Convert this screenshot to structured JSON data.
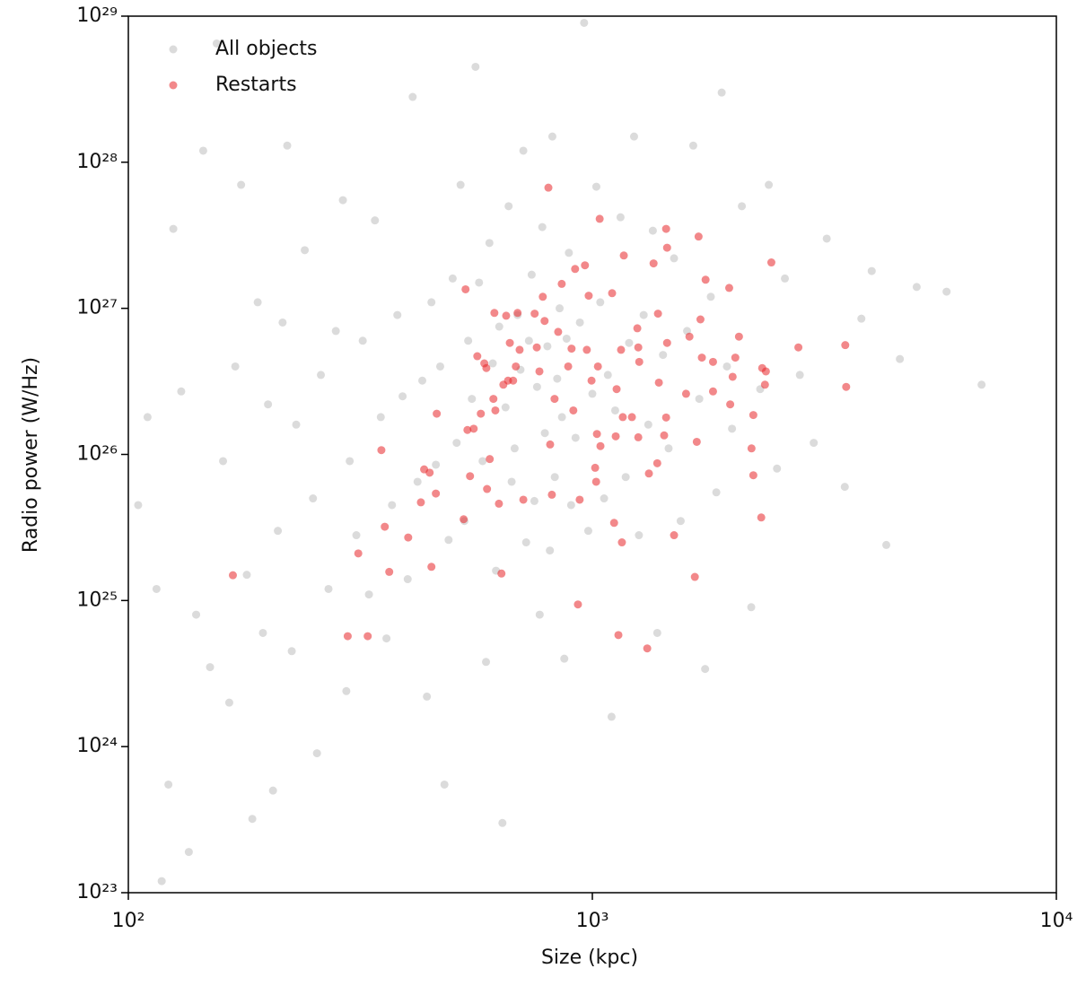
{
  "chart_data": {
    "type": "scatter",
    "xlabel": "Size (kpc)",
    "ylabel": "Radio power (W/Hz)",
    "xscale": "log",
    "yscale": "log",
    "xlim": [
      100,
      10000
    ],
    "ylim": [
      1e+23,
      1e+29
    ],
    "xticks": [
      {
        "value": 100,
        "label": "10²"
      },
      {
        "value": 1000,
        "label": "10³"
      },
      {
        "value": 10000,
        "label": "10⁴"
      }
    ],
    "yticks": [
      {
        "value": 1e+23,
        "label": "10²³"
      },
      {
        "value": 1e+24,
        "label": "10²⁴"
      },
      {
        "value": 1e+25,
        "label": "10²⁵"
      },
      {
        "value": 1e+26,
        "label": "10²⁶"
      },
      {
        "value": 1e+27,
        "label": "10²⁷"
      },
      {
        "value": 1e+28,
        "label": "10²⁸"
      },
      {
        "value": 1e+29,
        "label": "10²⁹"
      }
    ],
    "grid": false,
    "legend": "upper left",
    "series": [
      {
        "name": "All objects",
        "color": "#bdbdbd",
        "x": [
          105,
          110,
          115,
          118,
          122,
          125,
          130,
          135,
          140,
          145,
          150,
          155,
          160,
          165,
          170,
          175,
          180,
          185,
          190,
          195,
          200,
          205,
          210,
          215,
          220,
          225,
          230,
          240,
          250,
          255,
          260,
          270,
          280,
          290,
          295,
          300,
          310,
          320,
          330,
          340,
          350,
          360,
          370,
          380,
          390,
          400,
          410,
          420,
          430,
          440,
          450,
          460,
          470,
          480,
          490,
          500,
          510,
          520,
          530,
          540,
          550,
          560,
          570,
          580,
          590,
          600,
          610,
          620,
          630,
          640,
          650,
          660,
          670,
          680,
          690,
          700,
          710,
          720,
          730,
          740,
          750,
          760,
          770,
          780,
          790,
          800,
          810,
          820,
          830,
          840,
          850,
          860,
          870,
          880,
          890,
          900,
          920,
          940,
          960,
          980,
          1000,
          1020,
          1040,
          1060,
          1080,
          1100,
          1120,
          1150,
          1180,
          1200,
          1230,
          1260,
          1290,
          1320,
          1350,
          1380,
          1420,
          1460,
          1500,
          1550,
          1600,
          1650,
          1700,
          1750,
          1800,
          1850,
          1900,
          1950,
          2000,
          2100,
          2200,
          2300,
          2400,
          2500,
          2600,
          2800,
          3000,
          3200,
          3500,
          3800,
          4000,
          4300,
          4600,
          5000,
          5800,
          6900
        ],
        "values": [
          4.5e+25,
          1.8e+26,
          1.2e+25,
          1.2e+23,
          5.5e+23,
          3.5e+27,
          2.7e+26,
          1.9e+23,
          8e+24,
          1.2e+28,
          3.5e+24,
          6.5e+28,
          9e+25,
          2e+24,
          4e+26,
          7e+27,
          1.5e+25,
          3.2e+23,
          1.1e+27,
          6e+24,
          2.2e+26,
          5e+23,
          3e+25,
          8e+26,
          1.3e+28,
          4.5e+24,
          1.6e+26,
          2.5e+27,
          5e+25,
          9e+23,
          3.5e+26,
          1.2e+25,
          7e+26,
          5.5e+27,
          2.4e+24,
          9e+25,
          2.8e+25,
          6e+26,
          1.1e+25,
          4e+27,
          1.8e+26,
          5.5e+24,
          4.5e+25,
          9e+26,
          2.5e+26,
          1.4e+25,
          2.8e+28,
          6.5e+25,
          3.2e+26,
          2.2e+24,
          1.1e+27,
          8.5e+25,
          4e+26,
          5.5e+23,
          2.6e+25,
          1.6e+27,
          1.2e+26,
          7e+27,
          3.5e+25,
          6e+26,
          2.4e+26,
          4.5e+28,
          1.5e+27,
          9e+25,
          3.8e+24,
          2.8e+27,
          4.2e+26,
          1.6e+25,
          7.5e+26,
          3e+23,
          2.1e+26,
          5e+27,
          6.5e+25,
          1.1e+26,
          9e+26,
          3.8e+26,
          1.2e+28,
          2.5e+25,
          6e+26,
          1.7e+27,
          4.8e+25,
          2.9e+26,
          8e+24,
          3.6e+27,
          1.4e+26,
          5.5e+26,
          2.2e+25,
          1.5e+28,
          7e+25,
          3.3e+26,
          1e+27,
          1.8e+26,
          4e+24,
          6.2e+26,
          2.4e+27,
          4.5e+25,
          1.3e+26,
          8e+26,
          9e+28,
          3e+25,
          2.6e+26,
          6.8e+27,
          1.1e+27,
          5e+25,
          3.5e+26,
          1.6e+24,
          2e+26,
          4.2e+27,
          7e+25,
          5.8e+26,
          1.5e+28,
          2.8e+25,
          9e+26,
          1.6e+26,
          3.4e+27,
          6e+24,
          4.8e+26,
          1.1e+26,
          2.2e+27,
          3.5e+25,
          7e+26,
          1.3e+28,
          2.4e+26,
          3.4e+24,
          1.2e+27,
          5.5e+25,
          3e+28,
          4e+26,
          1.5e+26,
          5e+27,
          9e+24,
          2.8e+26,
          7e+27,
          8e+25,
          1.6e+27,
          3.5e+26,
          1.2e+26,
          3e+27,
          6e+25,
          8.5e+26,
          1.8e+27,
          2.4e+25,
          4.5e+26,
          1.4e+27,
          1.3e+27,
          3e+26
        ]
      },
      {
        "name": "Restarts",
        "color": "#e8262a",
        "x": [
          168,
          297,
          328,
          313,
          351,
          357,
          365,
          401,
          427,
          434,
          446,
          450,
          462,
          460,
          528,
          533,
          538,
          545,
          555,
          565,
          575,
          585,
          591,
          593,
          601,
          612,
          615,
          618,
          629,
          637,
          643,
          652,
          658,
          664,
          675,
          684,
          690,
          697,
          710,
          751,
          759,
          769,
          782,
          789,
          804,
          811,
          818,
          829,
          844,
          859,
          887,
          902,
          910,
          918,
          931,
          939,
          964,
          973,
          982,
          996,
          1014,
          1019,
          1023,
          1028,
          1037,
          1041,
          1103,
          1114,
          1123,
          1128,
          1138,
          1153,
          1158,
          1163,
          1169,
          1217,
          1250,
          1256,
          1256,
          1262,
          1313,
          1324,
          1355,
          1380,
          1385,
          1391,
          1428,
          1442,
          1442,
          1449,
          1449,
          1500,
          1592,
          1619,
          1663,
          1679,
          1694,
          1710,
          1722,
          1754,
          1820,
          1820,
          1972,
          1982,
          2006,
          2033,
          2070,
          2203,
          2223,
          2223,
          2312,
          2323,
          2355,
          2366,
          2431,
          2780,
          3508,
          3524
        ],
        "values": [
          1.49e+25,
          5.7e+24,
          5.7e+24,
          2.1e+25,
          1.07e+26,
          3.2e+25,
          1.57e+25,
          2.7e+25,
          4.7e+25,
          7.9e+25,
          7.5e+25,
          1.7e+25,
          1.9e+26,
          5.4e+25,
          3.6e+25,
          1.35e+27,
          1.47e+26,
          7.1e+25,
          1.5e+26,
          4.7e+26,
          1.9e+26,
          4.2e+26,
          3.9e+26,
          5.8e+25,
          9.3e+25,
          2.4e+26,
          9.3e+26,
          2e+26,
          4.6e+25,
          1.53e+25,
          3e+26,
          8.9e+26,
          3.2e+26,
          5.8e+26,
          3.2e+26,
          4e+26,
          9.3e+26,
          5.2e+26,
          4.9e+25,
          9.2e+26,
          5.4e+26,
          3.7e+26,
          1.2e+27,
          8.2e+26,
          6.7e+27,
          1.17e+26,
          5.3e+25,
          2.4e+26,
          6.9e+26,
          1.47e+27,
          4e+26,
          5.3e+26,
          2e+26,
          1.86e+27,
          9.4e+24,
          4.9e+25,
          1.97e+27,
          5.2e+26,
          1.22e+27,
          3.2e+26,
          8.1e+25,
          6.5e+25,
          1.38e+26,
          4e+26,
          4.1e+27,
          1.14e+26,
          1.27e+27,
          3.4e+25,
          1.33e+26,
          2.8e+26,
          5.8e+24,
          5.2e+26,
          2.5e+25,
          1.8e+26,
          2.3e+27,
          1.8e+26,
          7.3e+26,
          5.4e+26,
          1.31e+26,
          4.3e+26,
          4.7e+24,
          7.4e+25,
          2.03e+27,
          8.7e+25,
          9.2e+26,
          3.1e+26,
          1.35e+26,
          1.79e+26,
          3.5e+27,
          2.6e+27,
          5.8e+26,
          2.8e+25,
          2.6e+26,
          6.4e+26,
          1.45e+25,
          1.22e+26,
          3.1e+27,
          8.4e+26,
          4.6e+26,
          1.57e+27,
          2.7e+26,
          4.3e+26,
          1.38e+27,
          2.2e+26,
          3.4e+26,
          4.6e+26,
          6.4e+26,
          1.1e+26,
          7.2e+25,
          1.86e+26,
          3.7e+25,
          3.9e+26,
          3e+26,
          3.7e+26,
          2.06e+27,
          5.4e+26,
          5.6e+26,
          2.9e+26
        ]
      }
    ]
  }
}
